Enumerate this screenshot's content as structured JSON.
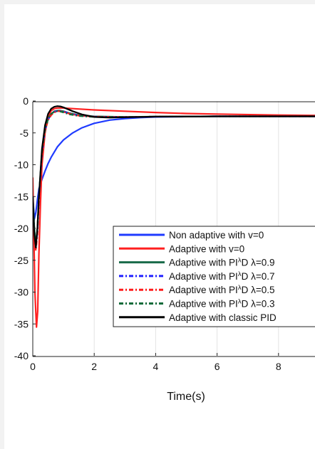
{
  "chart_data": {
    "type": "line",
    "xlabel": "Time(s)",
    "ylabel": "",
    "title": "",
    "xlim": [
      0,
      10
    ],
    "ylim": [
      -40,
      0
    ],
    "xticks": [
      0,
      2,
      4,
      6,
      8
    ],
    "yticks": [
      0,
      -5,
      -10,
      -15,
      -20,
      -25,
      -30,
      -35,
      -40
    ],
    "grid": "vertical",
    "legend_position": "bottom-right",
    "series": [
      {
        "name": "Non adaptive with v=0",
        "color": "#1f3bff",
        "style": "solid",
        "x": [
          0,
          0.05,
          0.1,
          0.15,
          0.2,
          0.3,
          0.4,
          0.5,
          0.6,
          0.8,
          1.0,
          1.3,
          1.6,
          2.0,
          2.5,
          3.0,
          3.5,
          4.0,
          5.0,
          6.0,
          8.0,
          10.0
        ],
        "y": [
          -15,
          -18.5,
          -17.5,
          -15.5,
          -13.8,
          -12.3,
          -11,
          -9.8,
          -8.8,
          -7.2,
          -6.1,
          -5,
          -4.2,
          -3.5,
          -3.0,
          -2.75,
          -2.6,
          -2.5,
          -2.45,
          -2.4,
          -2.4,
          -2.4
        ]
      },
      {
        "name": "Adaptive with v=0",
        "color": "#ff2020",
        "style": "solid",
        "x": [
          0,
          0.03,
          0.07,
          0.12,
          0.16,
          0.2,
          0.25,
          0.3,
          0.4,
          0.5,
          0.6,
          0.7,
          0.8,
          1.0,
          1.5,
          2.0,
          3.0,
          4.0,
          5.0,
          6.0,
          8.0,
          10.0
        ],
        "y": [
          -12,
          -20,
          -30,
          -35.5,
          -33,
          -24,
          -16,
          -10,
          -5,
          -2.5,
          -1.5,
          -1.2,
          -1.1,
          -1.1,
          -1.25,
          -1.4,
          -1.6,
          -1.8,
          -1.95,
          -2.05,
          -2.2,
          -2.3
        ]
      },
      {
        "name": "Adaptive with PI^λD λ=0.9",
        "color": "#1a6b4a",
        "style": "solid",
        "x": [
          0,
          0.05,
          0.1,
          0.15,
          0.2,
          0.3,
          0.4,
          0.5,
          0.6,
          0.7,
          0.8,
          0.9,
          1.0,
          1.2,
          1.5,
          2.0,
          3.0,
          4.0,
          6.0,
          10.0
        ],
        "y": [
          -15,
          -20,
          -22.5,
          -20,
          -15,
          -8,
          -4.5,
          -2.8,
          -2,
          -1.6,
          -1.5,
          -1.5,
          -1.6,
          -1.9,
          -2.2,
          -2.4,
          -2.5,
          -2.45,
          -2.4,
          -2.4
        ]
      },
      {
        "name": "Adaptive with PI^λD λ=0.7",
        "color": "#2020ff",
        "style": "dashdot",
        "x": [
          0,
          0.05,
          0.1,
          0.15,
          0.2,
          0.3,
          0.4,
          0.5,
          0.6,
          0.7,
          0.8,
          0.9,
          1.0,
          1.2,
          1.5,
          2.0,
          3.0,
          4.0,
          6.0,
          10.0
        ],
        "y": [
          -15,
          -20.5,
          -23,
          -20.5,
          -15.5,
          -8.2,
          -4.6,
          -2.9,
          -2.1,
          -1.7,
          -1.55,
          -1.55,
          -1.65,
          -1.95,
          -2.25,
          -2.45,
          -2.5,
          -2.45,
          -2.4,
          -2.4
        ]
      },
      {
        "name": "Adaptive with PI^λD λ=0.5",
        "color": "#ff1a1a",
        "style": "dashdot",
        "x": [
          0,
          0.05,
          0.1,
          0.15,
          0.2,
          0.3,
          0.4,
          0.5,
          0.6,
          0.7,
          0.8,
          0.9,
          1.0,
          1.2,
          1.5,
          2.0,
          3.0,
          4.0,
          6.0,
          10.0
        ],
        "y": [
          -15,
          -21,
          -23.5,
          -21,
          -16,
          -8.5,
          -4.7,
          -3.0,
          -2.2,
          -1.8,
          -1.6,
          -1.6,
          -1.7,
          -2.0,
          -2.3,
          -2.45,
          -2.5,
          -2.45,
          -2.4,
          -2.4
        ]
      },
      {
        "name": "Adaptive with PI^λD λ=0.3",
        "color": "#0f6b3a",
        "style": "dashdot",
        "x": [
          0,
          0.05,
          0.1,
          0.15,
          0.2,
          0.3,
          0.4,
          0.5,
          0.6,
          0.7,
          0.8,
          0.9,
          1.0,
          1.2,
          1.5,
          2.0,
          3.0,
          4.0,
          6.0,
          10.0
        ],
        "y": [
          -15,
          -20,
          -22.5,
          -20,
          -15,
          -8,
          -4.5,
          -2.8,
          -2,
          -1.7,
          -1.6,
          -1.65,
          -1.8,
          -2.1,
          -2.35,
          -2.5,
          -2.5,
          -2.45,
          -2.4,
          -2.4
        ]
      },
      {
        "name": "Adaptive with classic PID",
        "color": "#000000",
        "style": "solid",
        "x": [
          0,
          0.05,
          0.1,
          0.15,
          0.2,
          0.3,
          0.4,
          0.5,
          0.6,
          0.7,
          0.8,
          0.9,
          1.0,
          1.1,
          1.3,
          1.6,
          2.0,
          2.5,
          3.0,
          4.0,
          6.0,
          10.0
        ],
        "y": [
          -15,
          -21,
          -23,
          -20,
          -15,
          -7.5,
          -3.8,
          -2,
          -1.2,
          -0.9,
          -0.8,
          -0.85,
          -1.0,
          -1.2,
          -1.6,
          -2.1,
          -2.5,
          -2.6,
          -2.55,
          -2.45,
          -2.4,
          -2.4
        ]
      }
    ]
  }
}
